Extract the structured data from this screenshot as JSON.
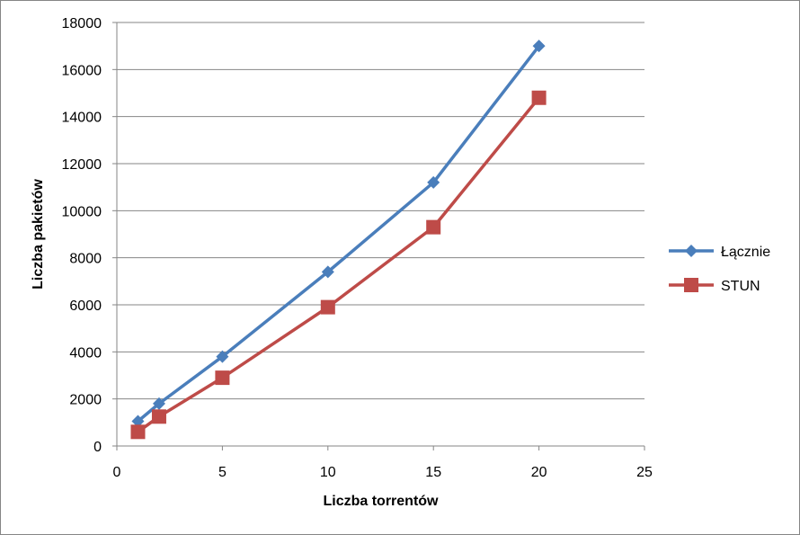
{
  "chart_data": {
    "type": "line",
    "title": "",
    "xlabel": "Liczba torrentów",
    "ylabel": "Liczba pakietów",
    "xlim": [
      0,
      25
    ],
    "ylim": [
      0,
      18000
    ],
    "x_ticks": [
      0,
      5,
      10,
      15,
      20,
      25
    ],
    "y_ticks": [
      0,
      2000,
      4000,
      6000,
      8000,
      10000,
      12000,
      14000,
      16000,
      18000
    ],
    "grid": "horizontal",
    "legend_position": "right",
    "series": [
      {
        "name": "Łącznie",
        "color": "#4a7ebb",
        "marker": "diamond",
        "x": [
          1,
          2,
          5,
          10,
          15,
          20
        ],
        "y": [
          1050,
          1800,
          3800,
          7400,
          11200,
          17000
        ]
      },
      {
        "name": "STUN",
        "color": "#be4b48",
        "marker": "square",
        "x": [
          1,
          2,
          5,
          10,
          15,
          20
        ],
        "y": [
          600,
          1250,
          2900,
          5900,
          9300,
          14800
        ]
      }
    ]
  }
}
